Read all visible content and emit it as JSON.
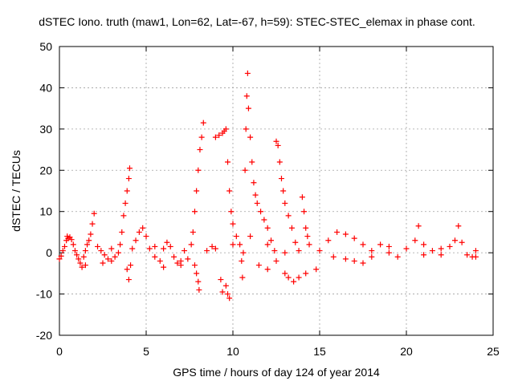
{
  "chart_data": {
    "type": "scatter",
    "title": "dSTEC Iono. truth (maw1, Lon=62, Lat=-67, h=59): STEC-STEC_elemax in phase cont.",
    "xlabel": "GPS time / hours of day 124 of year 2014",
    "ylabel": "dSTEC  / TECUs",
    "xlim": [
      0,
      25
    ],
    "ylim": [
      -20,
      50
    ],
    "xticks": [
      0,
      5,
      10,
      15,
      20,
      25
    ],
    "yticks": [
      -20,
      -10,
      0,
      10,
      20,
      30,
      40,
      50
    ],
    "grid": true,
    "marker": "+",
    "color": "#ff0000",
    "series": [
      {
        "points": [
          [
            0.0,
            -1.5
          ],
          [
            0.1,
            -0.8
          ],
          [
            0.2,
            0.5
          ],
          [
            0.3,
            1.5
          ],
          [
            0.4,
            3.0
          ],
          [
            0.45,
            4.0
          ],
          [
            0.5,
            3.5
          ],
          [
            0.6,
            3.8
          ],
          [
            0.7,
            3.2
          ],
          [
            0.8,
            2.0
          ],
          [
            0.9,
            0.5
          ],
          [
            1.0,
            -0.5
          ],
          [
            1.1,
            -1.5
          ],
          [
            1.2,
            -2.5
          ],
          [
            1.3,
            -3.5
          ],
          [
            1.4,
            -1.0
          ],
          [
            1.5,
            0.5
          ],
          [
            1.6,
            2.0
          ],
          [
            1.7,
            3.0
          ],
          [
            1.8,
            4.5
          ],
          [
            1.9,
            7.0
          ],
          [
            2.0,
            9.5
          ],
          [
            2.2,
            1.5
          ],
          [
            2.4,
            0.5
          ],
          [
            2.6,
            -0.5
          ],
          [
            2.8,
            -1.5
          ],
          [
            3.0,
            -2.0
          ],
          [
            3.2,
            -1.0
          ],
          [
            3.4,
            0.0
          ],
          [
            3.5,
            2.0
          ],
          [
            3.6,
            5.0
          ],
          [
            3.7,
            9.0
          ],
          [
            3.8,
            12.0
          ],
          [
            3.9,
            15.0
          ],
          [
            4.0,
            18.0
          ],
          [
            4.05,
            20.5
          ],
          [
            3.9,
            -4.0
          ],
          [
            4.0,
            -6.5
          ],
          [
            4.1,
            -3.0
          ],
          [
            4.2,
            1.0
          ],
          [
            4.4,
            3.0
          ],
          [
            4.6,
            5.0
          ],
          [
            4.8,
            6.0
          ],
          [
            5.0,
            4.0
          ],
          [
            5.2,
            1.0
          ],
          [
            5.5,
            -1.0
          ],
          [
            5.8,
            -2.0
          ],
          [
            6.0,
            1.0
          ],
          [
            6.2,
            2.5
          ],
          [
            6.4,
            1.5
          ],
          [
            6.6,
            -1.0
          ],
          [
            6.8,
            -2.5
          ],
          [
            7.0,
            -2.0
          ],
          [
            7.2,
            0.5
          ],
          [
            7.4,
            -1.5
          ],
          [
            7.6,
            2.0
          ],
          [
            7.7,
            5.0
          ],
          [
            7.8,
            10.0
          ],
          [
            7.9,
            15.0
          ],
          [
            8.0,
            20.0
          ],
          [
            8.1,
            25.0
          ],
          [
            8.2,
            28.0
          ],
          [
            8.3,
            31.5
          ],
          [
            7.8,
            -3.0
          ],
          [
            7.9,
            -5.0
          ],
          [
            8.0,
            -7.0
          ],
          [
            8.05,
            -9.0
          ],
          [
            8.5,
            0.5
          ],
          [
            8.8,
            1.5
          ],
          [
            9.0,
            28.0
          ],
          [
            9.2,
            28.5
          ],
          [
            9.4,
            29.0
          ],
          [
            9.5,
            29.5
          ],
          [
            9.6,
            30.0
          ],
          [
            9.6,
            -8.0
          ],
          [
            9.7,
            -10.0
          ],
          [
            9.8,
            -11.0
          ],
          [
            9.4,
            -9.5
          ],
          [
            9.3,
            -6.5
          ],
          [
            9.7,
            22.0
          ],
          [
            9.8,
            15.0
          ],
          [
            9.9,
            10.0
          ],
          [
            10.0,
            7.0
          ],
          [
            10.2,
            4.0
          ],
          [
            10.4,
            2.0
          ],
          [
            10.5,
            -2.0
          ],
          [
            10.55,
            -6.0
          ],
          [
            10.6,
            0.0
          ],
          [
            10.7,
            20.0
          ],
          [
            10.75,
            30.0
          ],
          [
            10.8,
            38.0
          ],
          [
            10.85,
            43.5
          ],
          [
            10.9,
            35.0
          ],
          [
            11.0,
            28.0
          ],
          [
            11.1,
            22.0
          ],
          [
            11.2,
            17.0
          ],
          [
            11.3,
            14.0
          ],
          [
            11.4,
            12.0
          ],
          [
            11.6,
            10.0
          ],
          [
            11.8,
            8.0
          ],
          [
            12.0,
            6.0
          ],
          [
            12.2,
            3.0
          ],
          [
            12.4,
            0.5
          ],
          [
            12.5,
            -2.0
          ],
          [
            12.5,
            27.0
          ],
          [
            12.6,
            26.0
          ],
          [
            12.7,
            22.0
          ],
          [
            12.8,
            18.0
          ],
          [
            12.9,
            15.0
          ],
          [
            13.0,
            12.0
          ],
          [
            13.2,
            9.0
          ],
          [
            13.4,
            6.0
          ],
          [
            13.6,
            2.5
          ],
          [
            13.8,
            0.5
          ],
          [
            14.0,
            13.5
          ],
          [
            14.1,
            10.0
          ],
          [
            14.2,
            6.0
          ],
          [
            14.3,
            4.0
          ],
          [
            14.4,
            2.0
          ],
          [
            13.0,
            -5.0
          ],
          [
            13.2,
            -6.0
          ],
          [
            13.5,
            -7.0
          ],
          [
            13.8,
            -6.0
          ],
          [
            14.2,
            -5.0
          ],
          [
            14.8,
            -4.0
          ],
          [
            15.0,
            0.5
          ],
          [
            15.5,
            3.0
          ],
          [
            16.0,
            5.0
          ],
          [
            16.5,
            4.5
          ],
          [
            17.0,
            3.5
          ],
          [
            17.5,
            2.0
          ],
          [
            18.0,
            0.5
          ],
          [
            18.5,
            2.0
          ],
          [
            19.0,
            0.0
          ],
          [
            19.5,
            -1.0
          ],
          [
            20.0,
            1.0
          ],
          [
            20.5,
            3.0
          ],
          [
            20.7,
            6.5
          ],
          [
            21.0,
            2.0
          ],
          [
            21.5,
            0.5
          ],
          [
            22.0,
            -0.5
          ],
          [
            22.5,
            1.5
          ],
          [
            22.8,
            3.0
          ],
          [
            23.0,
            6.5
          ],
          [
            23.2,
            2.5
          ],
          [
            23.5,
            -0.5
          ],
          [
            23.8,
            -1.0
          ],
          [
            24.0,
            0.5
          ],
          [
            15.8,
            -1.0
          ],
          [
            16.5,
            -1.5
          ],
          [
            17.0,
            -2.0
          ],
          [
            17.5,
            -2.5
          ],
          [
            18.0,
            -1.0
          ],
          [
            19.0,
            1.5
          ],
          [
            21.0,
            -0.5
          ],
          [
            22.0,
            1.0
          ],
          [
            24.0,
            -1.0
          ],
          [
            11.5,
            -3.0
          ],
          [
            12.0,
            -4.0
          ],
          [
            10.0,
            2.0
          ],
          [
            11.0,
            4.0
          ],
          [
            12.0,
            2.0
          ],
          [
            13.0,
            0.0
          ],
          [
            6.0,
            -3.5
          ],
          [
            7.0,
            -3.0
          ],
          [
            2.5,
            -2.5
          ],
          [
            1.5,
            -3.0
          ],
          [
            3.0,
            1.0
          ],
          [
            5.5,
            1.5
          ],
          [
            9.0,
            1.0
          ]
        ]
      }
    ]
  }
}
